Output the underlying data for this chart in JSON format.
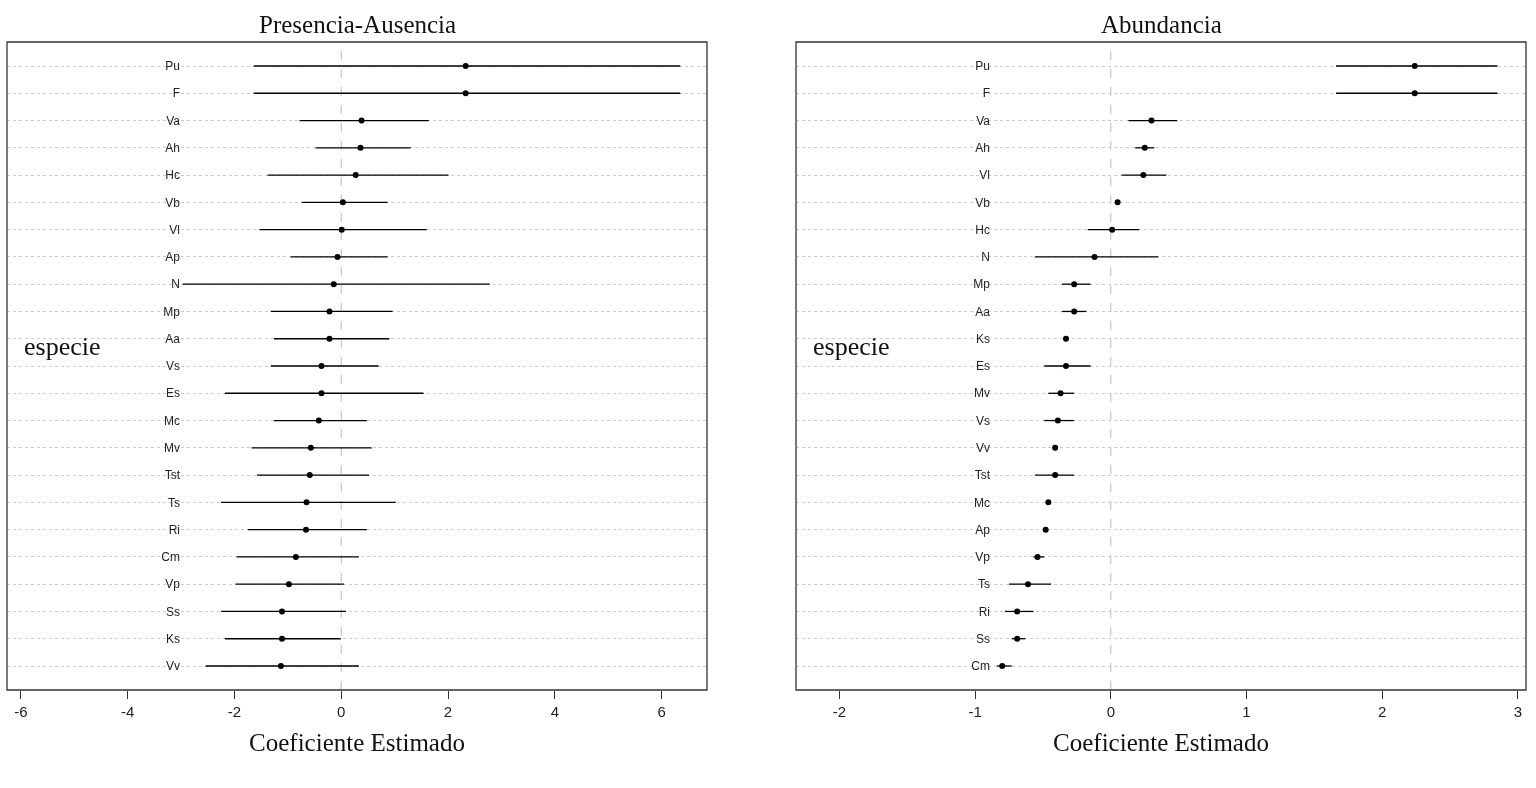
{
  "chart_data": [
    {
      "type": "scatter",
      "title": "Presencia-Ausencia",
      "xlabel": "Coeficiente Estimado",
      "ylabel": "especie",
      "orientation": "horizontal",
      "marker": "circle",
      "grid": "y",
      "color": "#000000",
      "categories": [
        "Pu",
        "F",
        "Va",
        "Ah",
        "Hc",
        "Vb",
        "Vl",
        "Ap",
        "N",
        "Mp",
        "Aa",
        "Vs",
        "Es",
        "Mc",
        "Mv",
        "Tst",
        "Ts",
        "Ri",
        "Cm",
        "Vp",
        "Ss",
        "Ks",
        "Vv"
      ],
      "values": [
        2.33,
        2.33,
        0.38,
        0.36,
        0.27,
        0.03,
        0.01,
        -0.07,
        -0.14,
        -0.22,
        -0.22,
        -0.37,
        -0.37,
        -0.42,
        -0.57,
        -0.59,
        -0.65,
        -0.66,
        -0.85,
        -0.98,
        -1.11,
        -1.11,
        -1.13
      ],
      "errors": [
        [
          -1.64,
          6.35
        ],
        [
          -1.64,
          6.35
        ],
        [
          -0.78,
          1.64
        ],
        [
          -0.48,
          1.3
        ],
        [
          -1.38,
          2.01
        ],
        [
          -0.74,
          0.87
        ],
        [
          -1.53,
          1.6
        ],
        [
          -0.95,
          0.87
        ],
        [
          -2.97,
          2.78
        ],
        [
          -1.32,
          0.96
        ],
        [
          -1.26,
          0.9
        ],
        [
          -1.32,
          0.7
        ],
        [
          -2.18,
          1.54
        ],
        [
          -1.26,
          0.48
        ],
        [
          -1.68,
          0.57
        ],
        [
          -1.58,
          0.52
        ],
        [
          -2.25,
          1.02
        ],
        [
          -1.75,
          0.48
        ],
        [
          -1.96,
          0.33
        ],
        [
          -1.98,
          0.05
        ],
        [
          -2.25,
          0.09
        ],
        [
          -2.18,
          -0.01
        ],
        [
          -2.54,
          0.33
        ]
      ],
      "xlim": [
        -6.26,
        6.85
      ],
      "xticks": [
        -6,
        -4,
        -2,
        0,
        2,
        4,
        6
      ],
      "ref_lines": [
        {
          "axis": "x",
          "value": 0,
          "color": "#bbbbbb",
          "line_style": "dashed"
        }
      ]
    },
    {
      "type": "scatter",
      "title": "Abundancia",
      "xlabel": "Coeficiente Estimado",
      "ylabel": "especie",
      "orientation": "horizontal",
      "marker": "circle",
      "grid": "y",
      "color": "#000000",
      "categories": [
        "Pu",
        "F",
        "Va",
        "Ah",
        "Vl",
        "Vb",
        "Hc",
        "N",
        "Mp",
        "Aa",
        "Ks",
        "Es",
        "Mv",
        "Vs",
        "Vv",
        "Tst",
        "Mc",
        "Ap",
        "Vp",
        "Ts",
        "Ri",
        "Ss",
        "Cm"
      ],
      "values": [
        2.24,
        2.24,
        0.3,
        0.25,
        0.24,
        0.05,
        0.01,
        -0.12,
        -0.27,
        -0.27,
        -0.33,
        -0.33,
        -0.37,
        -0.39,
        -0.41,
        -0.41,
        -0.46,
        -0.48,
        -0.54,
        -0.61,
        -0.69,
        -0.69,
        -0.8
      ],
      "errors": [
        [
          1.66,
          2.85
        ],
        [
          1.66,
          2.85
        ],
        [
          0.13,
          0.49
        ],
        [
          0.18,
          0.32
        ],
        [
          0.08,
          0.41
        ],
        null,
        [
          -0.17,
          0.21
        ],
        [
          -0.56,
          0.35
        ],
        [
          -0.36,
          -0.15
        ],
        [
          -0.36,
          -0.18
        ],
        null,
        [
          -0.49,
          -0.15
        ],
        [
          -0.46,
          -0.27
        ],
        [
          -0.49,
          -0.27
        ],
        null,
        [
          -0.56,
          -0.27
        ],
        null,
        null,
        [
          -0.57,
          -0.49
        ],
        [
          -0.75,
          -0.44
        ],
        [
          -0.78,
          -0.57
        ],
        [
          -0.73,
          -0.63
        ],
        [
          -0.84,
          -0.73
        ]
      ],
      "xlim": [
        -2.32,
        3.06
      ],
      "xticks": [
        -2,
        -1,
        0,
        1,
        2,
        3
      ],
      "ref_lines": [
        {
          "axis": "x",
          "value": 0,
          "color": "#bbbbbb",
          "line_style": "dashed"
        }
      ]
    }
  ]
}
